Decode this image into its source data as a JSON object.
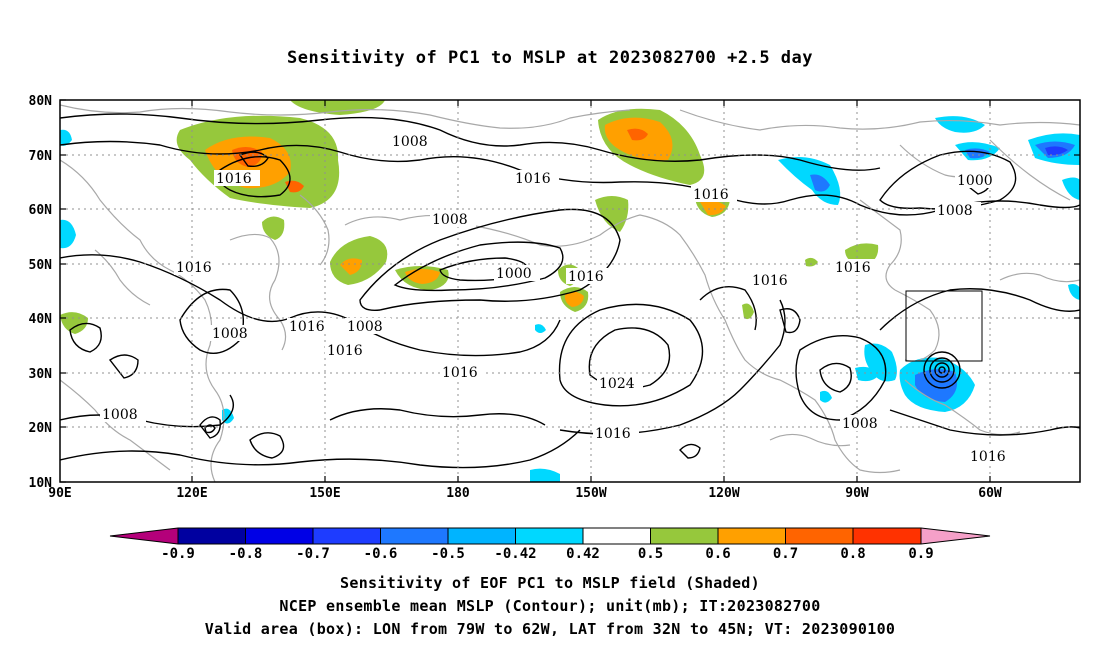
{
  "title": "Sensitivity of PC1 to MSLP at 2023082700 +2.5 day",
  "map": {
    "lat_labels": [
      "80N",
      "70N",
      "60N",
      "50N",
      "40N",
      "30N",
      "20N",
      "10N"
    ],
    "lon_labels": [
      "90E",
      "120E",
      "150E",
      "180",
      "150W",
      "120W",
      "90W",
      "60W"
    ],
    "contour_labels": [
      "1008",
      "1016",
      "1016",
      "1008",
      "1000",
      "1016",
      "1016",
      "1000",
      "1008",
      "1016",
      "1008",
      "1016",
      "1008",
      "1016",
      "1016",
      "1016",
      "1024",
      "1016",
      "1008",
      "1008",
      "1016"
    ],
    "valid_box": {
      "lon_min": -79,
      "lon_max": -62,
      "lat_min": 32,
      "lat_max": 45
    }
  },
  "colorbar": {
    "labels": [
      "-0.9",
      "-0.8",
      "-0.7",
      "-0.6",
      "-0.5",
      "-0.42",
      "0.42",
      "0.5",
      "0.6",
      "0.7",
      "0.8",
      "0.9"
    ],
    "colors": [
      "#b4007a",
      "#0000a0",
      "#0000e6",
      "#1e3cff",
      "#1e78ff",
      "#00b4ff",
      "#00d8ff",
      "#ffffff",
      "#96c83c",
      "#ffa000",
      "#ff6400",
      "#ff3200",
      "#ff0000",
      "#f5a0c8"
    ]
  },
  "footer": {
    "line1": "Sensitivity of EOF PC1 to MSLP field (Shaded)",
    "line2": "NCEP ensemble mean MSLP (Contour); unit(mb); IT:2023082700",
    "line3": "Valid area (box): LON from 79W to 62W, LAT from 32N to 45N; VT: 2023090100"
  }
}
